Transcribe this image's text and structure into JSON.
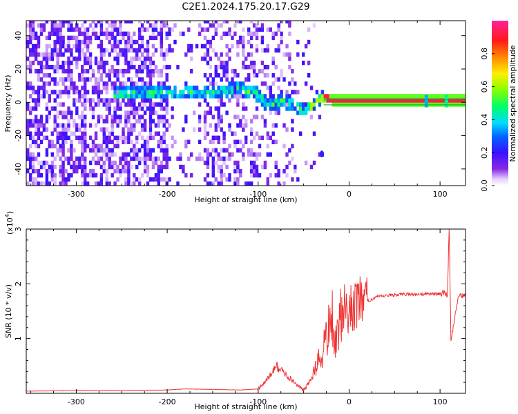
{
  "title": "C2E1.2024.175.20.17.G29",
  "chart_data": [
    {
      "type": "heatmap",
      "xlabel": "Height of straight line (km)",
      "ylabel": "Frequency (Hz)",
      "xlim": [
        -355,
        128
      ],
      "ylim": [
        -50,
        49
      ],
      "xticks": [
        -300,
        -200,
        -100,
        0,
        100
      ],
      "yticks": [
        -40,
        -20,
        0,
        20,
        40
      ],
      "colorbar": {
        "label": "Normalized spectral amplitude",
        "range": [
          0.0,
          1.0
        ],
        "ticks": [
          0.0,
          0.2,
          0.4,
          0.6,
          0.8
        ],
        "colormap": "rainbow (purple-blue-cyan-green-yellow-orange-red-magenta)"
      },
      "ridge": {
        "description": "dominant frequency ridge",
        "points": [
          {
            "x": -255,
            "y": 4
          },
          {
            "x": -185,
            "y": 5
          },
          {
            "x": -165,
            "y": 5
          },
          {
            "x": -150,
            "y": 5
          },
          {
            "x": -120,
            "y": 7
          },
          {
            "x": -100,
            "y": 3
          },
          {
            "x": -90,
            "y": -4
          },
          {
            "x": -75,
            "y": 0
          },
          {
            "x": -62,
            "y": -3
          },
          {
            "x": -55,
            "y": -6
          },
          {
            "x": -45,
            "y": -4
          },
          {
            "x": -30,
            "y": 2
          },
          {
            "x": -20,
            "y": 0
          },
          {
            "x": 0,
            "y": 0
          },
          {
            "x": 128,
            "y": 0
          }
        ]
      },
      "outlier_point": {
        "x": -30,
        "y": -31
      }
    },
    {
      "type": "line",
      "xlabel": "Height of straight line (km)",
      "ylabel": "SNR (10 * v/v)",
      "y_multiplier": "(x10",
      "y_multiplier_exp": "4",
      "y_multiplier_close": ")",
      "xlim": [
        -355,
        128
      ],
      "ylim": [
        0,
        3
      ],
      "xticks": [
        -300,
        -200,
        -100,
        0,
        100
      ],
      "yticks": [
        1,
        2,
        3
      ],
      "series": [
        {
          "color": "#ee3333",
          "x": [
            -355,
            -300,
            -250,
            -200,
            -180,
            -150,
            -120,
            -100,
            -90,
            -80,
            -70,
            -60,
            -50,
            -40,
            -30,
            -25,
            -20,
            -15,
            -10,
            -5,
            0,
            10,
            20,
            30,
            40,
            50,
            60,
            70,
            80,
            90,
            100,
            105,
            108,
            110,
            112,
            120,
            128
          ],
          "y": [
            0.04,
            0.05,
            0.05,
            0.06,
            0.08,
            0.07,
            0.06,
            0.08,
            0.25,
            0.5,
            0.35,
            0.2,
            0.05,
            0.3,
            0.7,
            1.0,
            1.4,
            1.0,
            1.25,
            1.4,
            1.55,
            1.6,
            1.68,
            1.76,
            1.78,
            1.8,
            1.81,
            1.81,
            1.81,
            1.82,
            1.82,
            1.84,
            1.76,
            3.0,
            0.95,
            1.79,
            1.78
          ]
        }
      ]
    }
  ]
}
